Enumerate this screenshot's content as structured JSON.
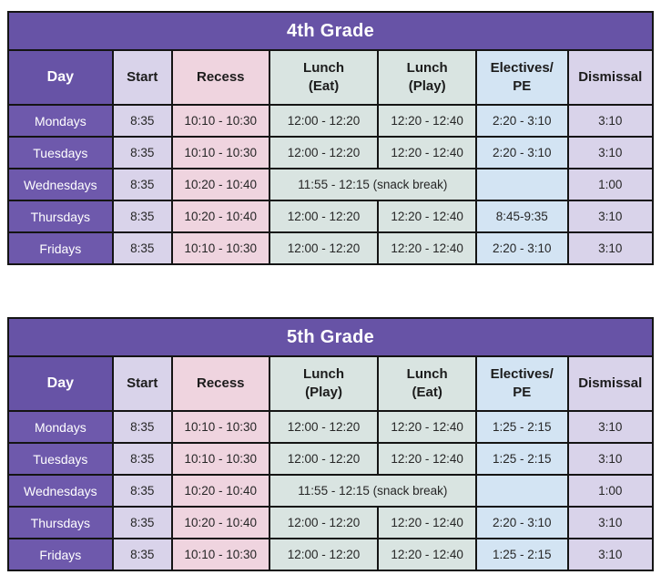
{
  "colors": {
    "header_purple": "#6753a6",
    "day_cell_purple": "#6e59ac",
    "lavender": "#d9d3ea",
    "pink": "#efd4df",
    "green_gray": "#d9e4e1",
    "light_blue": "#d3e4f3",
    "border": "#141414",
    "background": "#ffffff"
  },
  "tables": [
    {
      "title": "4th Grade",
      "columns": [
        "Day",
        "Start",
        "Recess",
        "Lunch\n(Eat)",
        "Lunch\n(Play)",
        "Electives/\nPE",
        "Dismissal"
      ],
      "rows": [
        {
          "day": "Mondays",
          "start": "8:35",
          "recess": "10:10 - 10:30",
          "lunch1": "12:00 - 12:20",
          "lunch2": "12:20 - 12:40",
          "electives": "2:20 - 3:10",
          "dismissal": "3:10"
        },
        {
          "day": "Tuesdays",
          "start": "8:35",
          "recess": "10:10 - 10:30",
          "lunch1": "12:00 - 12:20",
          "lunch2": "12:20 - 12:40",
          "electives": "2:20 - 3:10",
          "dismissal": "3:10"
        },
        {
          "day": "Wednesdays",
          "start": "8:35",
          "recess": "10:20 - 10:40",
          "lunch_merged": "11:55 - 12:15 (snack break)",
          "electives": "",
          "dismissal": "1:00"
        },
        {
          "day": "Thursdays",
          "start": "8:35",
          "recess": "10:20 - 10:40",
          "lunch1": "12:00 - 12:20",
          "lunch2": "12:20 - 12:40",
          "electives": "8:45-9:35",
          "dismissal": "3:10"
        },
        {
          "day": "Fridays",
          "start": "8:35",
          "recess": "10:10 - 10:30",
          "lunch1": "12:00 - 12:20",
          "lunch2": "12:20 - 12:40",
          "electives": "2:20 - 3:10",
          "dismissal": "3:10"
        }
      ]
    },
    {
      "title": "5th Grade",
      "columns": [
        "Day",
        "Start",
        "Recess",
        "Lunch\n(Play)",
        "Lunch\n(Eat)",
        "Electives/\nPE",
        "Dismissal"
      ],
      "rows": [
        {
          "day": "Mondays",
          "start": "8:35",
          "recess": "10:10 - 10:30",
          "lunch1": "12:00 - 12:20",
          "lunch2": "12:20 - 12:40",
          "electives": "1:25 - 2:15",
          "dismissal": "3:10"
        },
        {
          "day": "Tuesdays",
          "start": "8:35",
          "recess": "10:10 - 10:30",
          "lunch1": "12:00 - 12:20",
          "lunch2": "12:20 - 12:40",
          "electives": "1:25 - 2:15",
          "dismissal": "3:10"
        },
        {
          "day": "Wednesdays",
          "start": "8:35",
          "recess": "10:20 - 10:40",
          "lunch_merged": "11:55 - 12:15 (snack break)",
          "electives": "",
          "dismissal": "1:00"
        },
        {
          "day": "Thursdays",
          "start": "8:35",
          "recess": "10:20 - 10:40",
          "lunch1": "12:00 - 12:20",
          "lunch2": "12:20 - 12:40",
          "electives": "2:20 - 3:10",
          "dismissal": "3:10"
        },
        {
          "day": "Fridays",
          "start": "8:35",
          "recess": "10:10 - 10:30",
          "lunch1": "12:00 - 12:20",
          "lunch2": "12:20 - 12:40",
          "electives": "1:25 - 2:15",
          "dismissal": "3:10"
        }
      ]
    }
  ]
}
